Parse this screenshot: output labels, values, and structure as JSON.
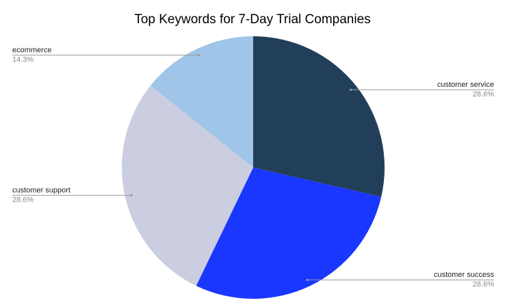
{
  "chart_data": {
    "type": "pie",
    "title": "Top Keywords for 7-Day Trial Companies",
    "categories": [
      "customer service",
      "customer success",
      "customer support",
      "ecommerce"
    ],
    "values": [
      28.6,
      28.6,
      28.6,
      14.3
    ],
    "value_labels": [
      "28.6%",
      "28.6%",
      "28.6%",
      "14.3%"
    ],
    "colors": [
      "#223f5a",
      "#1a37ff",
      "#cbcee0",
      "#9fc5e8"
    ]
  }
}
